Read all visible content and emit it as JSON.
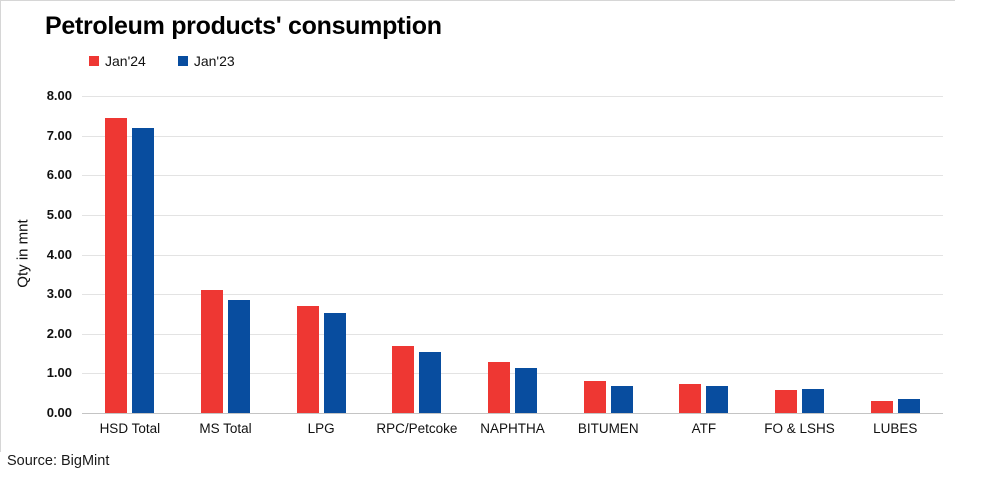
{
  "title": "Petroleum products' consumption",
  "source": "Source: BigMint",
  "chart_data": {
    "type": "bar",
    "title": "Petroleum products' consumption",
    "xlabel": "",
    "ylabel": "Qty in mnt",
    "ylim": [
      0,
      8
    ],
    "ytick_step": 1.0,
    "ytick_labels": [
      "8.00",
      "7.00",
      "6.00",
      "5.00",
      "4.00",
      "3.00",
      "2.00",
      "1.00",
      "0.00"
    ],
    "grid": "horizontal",
    "legend_position": "top-left",
    "categories": [
      "HSD Total",
      "MS Total",
      "LPG",
      "RPC/Petcoke",
      "NAPHTHA",
      "BITUMEN",
      "ATF",
      "FO & LSHS",
      "LUBES"
    ],
    "series": [
      {
        "name": "Jan'24",
        "color": "#ee3733",
        "values": [
          7.45,
          3.1,
          2.7,
          1.68,
          1.3,
          0.8,
          0.72,
          0.57,
          0.31
        ]
      },
      {
        "name": "Jan'23",
        "color": "#084d9f",
        "values": [
          7.2,
          2.85,
          2.52,
          1.53,
          1.14,
          0.67,
          0.67,
          0.61,
          0.35
        ]
      }
    ],
    "colors": {
      "jan24_red": "#ee3733",
      "jan23_blue": "#084d9f",
      "gridline": "#e3e3e3",
      "border": "#d6d6d6"
    }
  }
}
